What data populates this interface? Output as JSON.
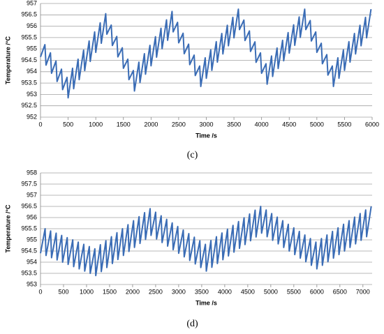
{
  "chart_data": [
    {
      "type": "line",
      "caption": "(c)",
      "xlabel": "Time /s",
      "ylabel": "Temperature /°C",
      "grid": true,
      "xlim": [
        0,
        6000
      ],
      "xticks": [
        0,
        500,
        1000,
        1500,
        2000,
        2500,
        3000,
        3500,
        4000,
        4500,
        5000,
        5500,
        6000
      ],
      "ylim": [
        952,
        957
      ],
      "yticks": [
        952,
        952.5,
        953,
        953.5,
        954,
        954.5,
        955,
        955.5,
        956,
        956.5,
        957
      ],
      "series": [
        {
          "color": "#3a6cb5",
          "x": [
            0,
            80,
            100,
            180,
            200,
            280,
            300,
            380,
            400,
            480,
            500,
            580,
            600,
            680,
            700,
            780,
            800,
            880,
            900,
            980,
            1000,
            1080,
            1100,
            1180,
            1200,
            1280,
            1300,
            1380,
            1400,
            1480,
            1500,
            1580,
            1600,
            1680,
            1700,
            1780,
            1800,
            1880,
            1900,
            1980,
            2000,
            2080,
            2100,
            2180,
            2200,
            2280,
            2300,
            2380,
            2400,
            2480,
            2500,
            2580,
            2600,
            2680,
            2700,
            2780,
            2800,
            2880,
            2900,
            2980,
            3000,
            3080,
            3100,
            3180,
            3200,
            3280,
            3300,
            3380,
            3400,
            3480,
            3500,
            3580,
            3600,
            3680,
            3700,
            3780,
            3800,
            3880,
            3900,
            3980,
            4000,
            4080,
            4100,
            4180,
            4200,
            4280,
            4300,
            4380,
            4400,
            4480,
            4500,
            4580,
            4600,
            4680,
            4700,
            4780,
            4800,
            4880,
            4900,
            4980,
            5000,
            5080,
            5100,
            5180,
            5200,
            5280,
            5300,
            5380,
            5400,
            5480,
            5500,
            5580,
            5600,
            5680,
            5700,
            5780,
            5800,
            5880,
            5900,
            5980
          ],
          "values": [
            954.65,
            955.19,
            954.29,
            954.83,
            953.93,
            954.47,
            953.57,
            954.11,
            953.21,
            953.75,
            952.85,
            954.15,
            953.25,
            954.55,
            953.65,
            954.95,
            954.05,
            955.35,
            954.45,
            955.75,
            954.85,
            956.15,
            955.25,
            956.55,
            955.65,
            956.05,
            955.15,
            955.55,
            954.65,
            955.05,
            954.15,
            954.55,
            953.65,
            954.05,
            953.15,
            954.42,
            953.52,
            954.79,
            953.89,
            955.16,
            954.26,
            955.54,
            954.64,
            955.91,
            955.01,
            956.28,
            955.38,
            956.65,
            955.75,
            956.17,
            955.27,
            955.69,
            954.79,
            955.21,
            954.31,
            954.73,
            953.83,
            954.25,
            953.35,
            954.61,
            953.71,
            954.96,
            954.06,
            955.32,
            954.42,
            955.68,
            954.78,
            956.04,
            955.14,
            956.39,
            955.49,
            956.75,
            955.85,
            956.27,
            955.37,
            955.79,
            954.89,
            955.31,
            954.41,
            954.83,
            953.93,
            954.35,
            953.45,
            954.69,
            953.79,
            955.04,
            954.14,
            955.38,
            954.48,
            955.72,
            954.82,
            956.06,
            955.16,
            956.41,
            955.51,
            956.75,
            955.85,
            956.25,
            955.35,
            955.75,
            954.85,
            955.25,
            954.35,
            954.75,
            953.85,
            954.25,
            953.35,
            954.61,
            953.71,
            954.96,
            954.06,
            955.32,
            954.42,
            955.68,
            954.78,
            956.04,
            955.14,
            956.39,
            955.49,
            956.75
          ]
        }
      ]
    },
    {
      "type": "line",
      "caption": "(d)",
      "xlabel": "Time /s",
      "ylabel": "Temperature /°C",
      "grid": true,
      "xlim": [
        0,
        7200
      ],
      "xticks": [
        0,
        500,
        1000,
        1500,
        2000,
        2500,
        3000,
        3500,
        4000,
        4500,
        5000,
        5500,
        6000,
        6500,
        7000
      ],
      "ylim": [
        953,
        958
      ],
      "yticks": [
        953,
        953.5,
        954,
        954.5,
        955,
        955.5,
        956,
        956.5,
        957,
        957.5,
        958
      ],
      "series": [
        {
          "color": "#3a6cb5",
          "x": [
            0,
            100,
            120,
            220,
            240,
            340,
            360,
            460,
            480,
            580,
            600,
            700,
            720,
            820,
            840,
            940,
            960,
            1060,
            1080,
            1180,
            1200,
            1300,
            1320,
            1420,
            1440,
            1540,
            1560,
            1660,
            1680,
            1780,
            1800,
            1900,
            1920,
            2020,
            2040,
            2140,
            2160,
            2260,
            2280,
            2380,
            2400,
            2500,
            2520,
            2620,
            2640,
            2740,
            2760,
            2860,
            2880,
            2980,
            3000,
            3100,
            3120,
            3220,
            3240,
            3340,
            3360,
            3460,
            3480,
            3580,
            3600,
            3700,
            3720,
            3820,
            3840,
            3940,
            3960,
            4060,
            4080,
            4180,
            4200,
            4300,
            4320,
            4420,
            4440,
            4540,
            4560,
            4660,
            4680,
            4780,
            4800,
            4900,
            4920,
            5020,
            5040,
            5140,
            5160,
            5260,
            5280,
            5380,
            5400,
            5500,
            5520,
            5620,
            5640,
            5740,
            5760,
            5860,
            5880,
            5980,
            6000,
            6100,
            6120,
            6220,
            6240,
            6340,
            6360,
            6460,
            6480,
            6580,
            6600,
            6700,
            6720,
            6820,
            6840,
            6940,
            6960,
            7060,
            7080,
            7180
          ],
          "values": [
            954.4,
            955.5,
            954.3,
            955.4,
            954.2,
            955.3,
            954.1,
            955.2,
            954.0,
            955.1,
            953.9,
            955.0,
            953.8,
            954.9,
            953.7,
            954.8,
            953.6,
            954.7,
            953.5,
            954.6,
            953.4,
            954.78,
            953.58,
            954.96,
            953.76,
            955.14,
            953.94,
            955.32,
            954.12,
            955.5,
            954.3,
            955.68,
            954.48,
            955.86,
            954.66,
            956.04,
            954.84,
            956.22,
            955.02,
            956.4,
            955.2,
            956.24,
            955.04,
            956.08,
            954.88,
            955.92,
            954.72,
            955.76,
            954.56,
            955.6,
            954.4,
            955.44,
            954.24,
            955.28,
            954.08,
            955.12,
            953.92,
            954.96,
            953.76,
            954.8,
            953.6,
            954.97,
            953.77,
            955.14,
            953.94,
            955.31,
            954.11,
            955.48,
            954.28,
            955.65,
            954.45,
            955.82,
            954.62,
            955.99,
            954.79,
            956.16,
            954.96,
            956.33,
            955.13,
            956.5,
            955.3,
            956.34,
            955.14,
            956.18,
            954.98,
            956.02,
            954.82,
            955.86,
            954.66,
            955.7,
            954.5,
            955.54,
            954.34,
            955.38,
            954.18,
            955.22,
            954.02,
            955.06,
            953.86,
            954.9,
            953.7,
            955.06,
            953.86,
            955.22,
            954.02,
            955.38,
            954.18,
            955.54,
            954.34,
            955.7,
            954.5,
            955.86,
            954.66,
            956.02,
            954.82,
            956.18,
            954.98,
            956.34,
            955.14,
            956.5
          ]
        }
      ]
    }
  ]
}
